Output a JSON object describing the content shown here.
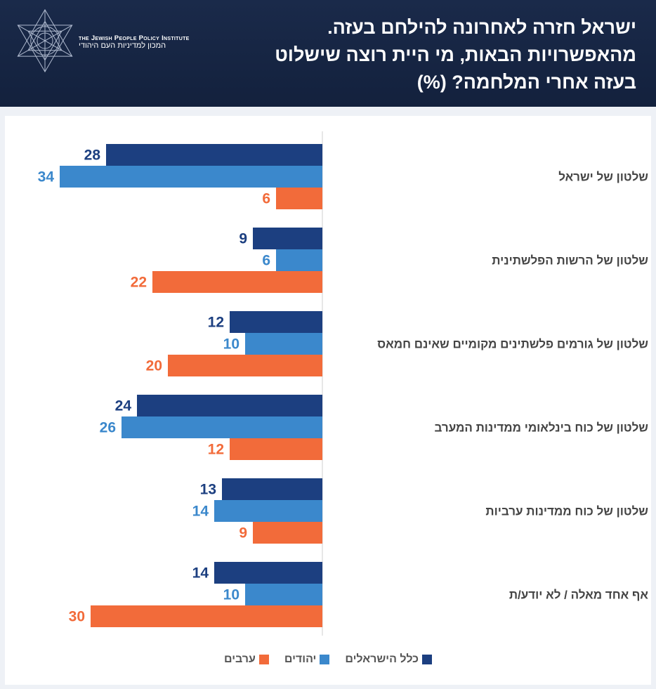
{
  "header": {
    "title_lines": [
      "ישראל חזרה לאחרונה להילחם בעזה.",
      "מהאפשרויות הבאות, מי היית רוצה שישלוט",
      "בעזה אחרי המלחמה? (%)"
    ],
    "org_en": "the Jewish People Policy Institute",
    "org_he": "המכון למדיניות העם היהודי"
  },
  "colors": {
    "header_bg": "#1a2a4a",
    "all_israelis": "#1c3f80",
    "jews": "#3b88cc",
    "arabs": "#f26b3a",
    "category_text": "#444444"
  },
  "chart_data": {
    "type": "bar",
    "orientation": "horizontal",
    "title": "ישראל חזרה לאחרונה להילחם בעזה. מהאפשרויות הבאות, מי היית רוצה שישלוט בעזה אחרי המלחמה? (%)",
    "categories": [
      "שלטון של ישראל",
      "שלטון של הרשות הפלשתינית",
      "שלטון של גורמים פלשתינים מקומיים שאינם חמאס",
      "שלטון של כוח בינלאומי ממדינות המערב",
      "שלטון של כוח ממדינות ערביות",
      "אף אחד מאלה / לא יודע/ת"
    ],
    "series": [
      {
        "name": "כלל הישראלים",
        "color": "#1c3f80",
        "values": [
          28,
          9,
          12,
          24,
          13,
          14
        ]
      },
      {
        "name": "יהודים",
        "color": "#3b88cc",
        "values": [
          34,
          6,
          10,
          26,
          14,
          10
        ]
      },
      {
        "name": "ערבים",
        "color": "#f26b3a",
        "values": [
          6,
          22,
          20,
          12,
          9,
          30
        ]
      }
    ],
    "xlim": [
      0,
      34
    ],
    "legend_position": "bottom-center",
    "grid": false
  }
}
